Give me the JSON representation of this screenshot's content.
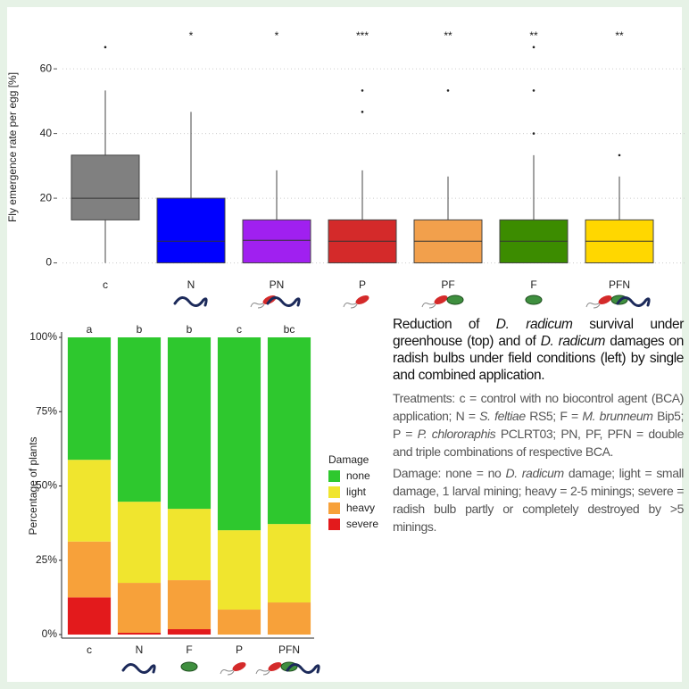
{
  "chart_data": [
    {
      "type": "box",
      "y_label": "Fly emergence rate per egg [%]",
      "categories": [
        "c",
        "N",
        "PN",
        "P",
        "PF",
        "F",
        "PFN"
      ],
      "colors": [
        "#808080",
        "#0000ff",
        "#a020f0",
        "#d42a2a",
        "#f2a04c",
        "#3c8c00",
        "#ffd700"
      ],
      "low": [
        0,
        0,
        0,
        0,
        0,
        0,
        0
      ],
      "q1": [
        13.3,
        0,
        0,
        0,
        0,
        0,
        0
      ],
      "median": [
        20,
        6.7,
        7,
        6.7,
        6.7,
        6.7,
        6.7
      ],
      "q3": [
        33.3,
        20,
        13.3,
        13.3,
        13.3,
        13.3,
        13.3
      ],
      "high": [
        53.3,
        46.7,
        28.6,
        28.6,
        26.7,
        33.3,
        26.7
      ],
      "outliers": [
        [
          66.7
        ],
        [],
        [],
        [
          46.7,
          53.3
        ],
        [
          53.3
        ],
        [
          40,
          53.3,
          66.7
        ],
        [
          33.3
        ]
      ],
      "significance": [
        null,
        "*",
        "*",
        "***",
        "**",
        "**",
        "**"
      ],
      "ylim": [
        -1.5,
        73
      ],
      "yticks": [
        0,
        20,
        40,
        60
      ],
      "grid": true
    },
    {
      "type": "stacked_bar",
      "y_label": "Percentage of plants",
      "legend_title": "Damage",
      "legend": "right",
      "categories": [
        "c",
        "N",
        "F",
        "P",
        "PFN"
      ],
      "letters": [
        "a",
        "b",
        "b",
        "c",
        "bc"
      ],
      "series": [
        {
          "name": "severe",
          "color": "#e31a1c",
          "values": [
            12.5,
            0.6,
            1.8,
            0,
            0
          ]
        },
        {
          "name": "heavy",
          "color": "#f7a13a",
          "values": [
            18.8,
            16.8,
            16.5,
            8.4,
            10.8
          ]
        },
        {
          "name": "light",
          "color": "#f0e52e",
          "values": [
            27.5,
            27.3,
            24,
            26.7,
            26.4
          ]
        },
        {
          "name": "none",
          "color": "#2ec82e",
          "values": [
            41.2,
            55.3,
            57.7,
            64.9,
            62.8
          ]
        }
      ],
      "ylim": [
        0,
        100
      ],
      "yticks": [
        {
          "value": 0,
          "label": "0%"
        },
        {
          "value": 25,
          "label": "25%"
        },
        {
          "value": 50,
          "label": "50%"
        },
        {
          "value": 75,
          "label": "75%"
        },
        {
          "value": 100,
          "label": "100%"
        }
      ]
    }
  ],
  "caption": {
    "heading": [
      {
        "text": "Reduction of "
      },
      {
        "text": "D. radicum",
        "italic": true
      },
      {
        "text": " survival under greenhouse (top) and of "
      },
      {
        "text": "D. radicum",
        "italic": true
      },
      {
        "text": " damages on radish bulbs under field conditions (left) by single and combined application."
      }
    ],
    "treatments": [
      {
        "text": "Treatments: c = control with no biocontrol agent (BCA) application; N = "
      },
      {
        "text": "S. feltiae",
        "italic": true
      },
      {
        "text": " RS5; F = "
      },
      {
        "text": "M. brunneum",
        "italic": true
      },
      {
        "text": " Bip5; P = "
      },
      {
        "text": "P. chlororaphis",
        "italic": true
      },
      {
        "text": " PCLRT03; PN, PF, PFN = double and triple combinations of respective BCA."
      }
    ],
    "damage": [
      {
        "text": "Damage: none = no "
      },
      {
        "text": "D. radicum",
        "italic": true
      },
      {
        "text": " damage; light = small damage, 1 larval mining; heavy = 2-5 minings; severe = radish bulb partly or completely destroyed by >5 minings."
      }
    ]
  }
}
